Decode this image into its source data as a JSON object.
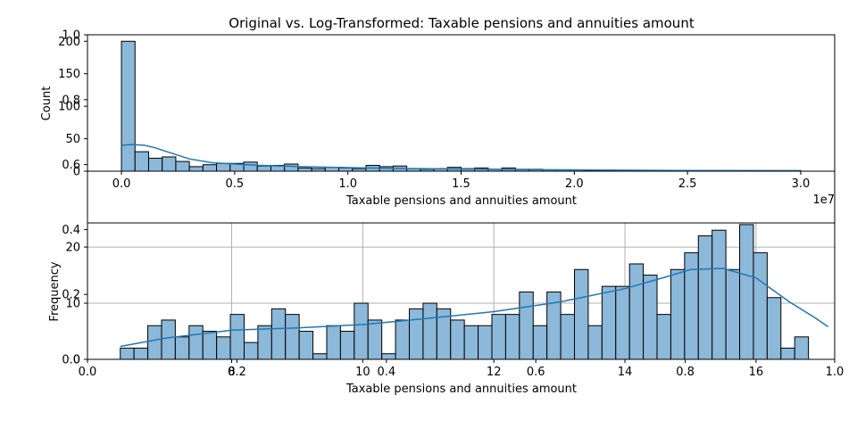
{
  "figure": {
    "title": "Original vs. Log-Transformed: Taxable pensions and annuities amount"
  },
  "colors": {
    "bar_fill": "#8cb8d9",
    "bar_edge": "#000000",
    "kde_line": "#1f77b4",
    "grid": "#b0b0b0",
    "axis": "#000000"
  },
  "chart_data": [
    {
      "type": "bar",
      "title": "",
      "xlabel": "Taxable pensions and annuities amount",
      "ylabel": "Count",
      "x_offset_label": "1e7",
      "grid": false,
      "xlim": [
        -0.15,
        3.15
      ],
      "ylim": [
        0,
        210
      ],
      "xticks": [
        0.0,
        0.5,
        1.0,
        1.5,
        2.0,
        2.5,
        3.0
      ],
      "xtick_labels": [
        "0.0",
        "0.5",
        "1.0",
        "1.5",
        "2.0",
        "2.5",
        "3.0"
      ],
      "yticks": [
        0,
        50,
        100,
        150,
        200
      ],
      "ytick_labels": [
        "0",
        "50",
        "100",
        "150",
        "200"
      ],
      "bin_start": 0.0,
      "bin_width": 0.06,
      "values": [
        200,
        30,
        20,
        22,
        15,
        7,
        10,
        12,
        12,
        14,
        8,
        9,
        11,
        5,
        4,
        6,
        5,
        4,
        9,
        7,
        8,
        4,
        3,
        4,
        6,
        4,
        5,
        3,
        5,
        3,
        3,
        2,
        2,
        2,
        1,
        1,
        1,
        1,
        1,
        1,
        1,
        1,
        1,
        1,
        1,
        1,
        1,
        1,
        1,
        1
      ],
      "kde": {
        "x": [
          0.0,
          0.05,
          0.1,
          0.15,
          0.2,
          0.3,
          0.4,
          0.6,
          0.8,
          1.0,
          1.2,
          1.4,
          1.6,
          1.8,
          2.0,
          2.5,
          3.0
        ],
        "y": [
          40,
          41,
          40,
          36,
          30,
          19,
          13,
          9,
          7,
          5.5,
          4.5,
          3.5,
          3,
          2.5,
          2,
          1,
          0.5
        ]
      }
    },
    {
      "type": "bar",
      "title": "",
      "xlabel": "Taxable pensions and annuities amount",
      "ylabel": "Frequency",
      "grid": true,
      "xlim": [
        5.8,
        17.2
      ],
      "ylim": [
        0,
        24.3
      ],
      "xticks": [
        8,
        10,
        12,
        14,
        16
      ],
      "xtick_labels": [
        "8",
        "10",
        "12",
        "14",
        "16"
      ],
      "yticks": [
        0,
        10,
        20
      ],
      "ytick_labels": [
        "0",
        "10",
        "20"
      ],
      "bin_start": 6.3,
      "bin_width": 0.21,
      "values": [
        2,
        2,
        6,
        7,
        4,
        6,
        5,
        4,
        8,
        3,
        6,
        9,
        8,
        5,
        1,
        6,
        5,
        10,
        7,
        1,
        7,
        9,
        10,
        9,
        7,
        6,
        6,
        8,
        8,
        12,
        6,
        12,
        8,
        16,
        6,
        13,
        13,
        17,
        15,
        8,
        16,
        19,
        22,
        23,
        16,
        24,
        19,
        11,
        2,
        4
      ],
      "kde": {
        "x": [
          6.3,
          7.0,
          8.0,
          9.0,
          10.0,
          11.0,
          12.0,
          13.0,
          14.0,
          14.6,
          15.0,
          15.5,
          16.0,
          16.5,
          16.9,
          17.1
        ],
        "y": [
          2.3,
          3.8,
          5.2,
          5.6,
          6.2,
          7.3,
          8.5,
          10.2,
          12.6,
          14.6,
          16.0,
          16.2,
          14.5,
          10.3,
          7.4,
          5.8
        ]
      }
    }
  ],
  "overlay_axes": {
    "xtick_labels": [
      "0.0",
      "0.2",
      "0.4",
      "0.6",
      "0.8",
      "1.0"
    ],
    "ytick_labels": [
      "0.0",
      "0.2",
      "0.4",
      "0.6",
      "0.8",
      "1.0"
    ]
  }
}
